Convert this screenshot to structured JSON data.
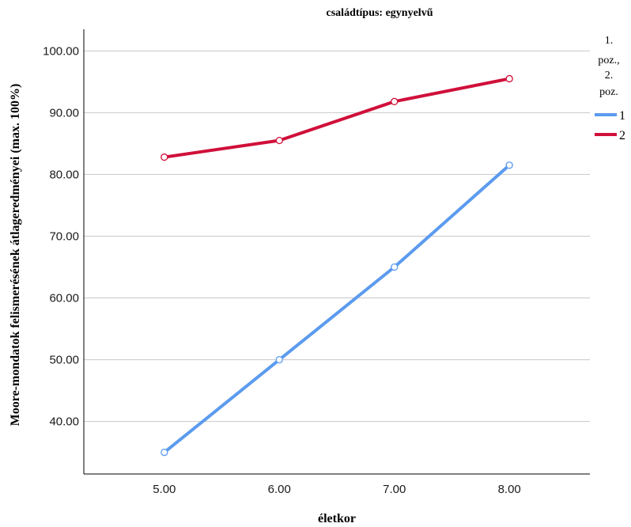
{
  "chart_data": {
    "type": "line",
    "title": "családtípus: egynyelvű",
    "xlabel": "életkor",
    "ylabel": "Moore-mondatok felismerésének átlageredményei (max. 100%)",
    "x": [
      5.0,
      6.0,
      7.0,
      8.0
    ],
    "x_tick_labels": [
      "5.00",
      "6.00",
      "7.00",
      "8.00"
    ],
    "xlim": [
      4.3,
      8.7
    ],
    "y_ticks": [
      40,
      50,
      60,
      70,
      80,
      90,
      100
    ],
    "y_tick_labels": [
      "40.00",
      "50.00",
      "60.00",
      "70.00",
      "80.00",
      "90.00",
      "100.00"
    ],
    "ylim": [
      31.5,
      103.5
    ],
    "grid": "horizontal",
    "legend": {
      "title_lines": [
        "1.",
        "poz.,",
        "2.",
        "poz."
      ],
      "placement": "right"
    },
    "series": [
      {
        "name": "1",
        "color": "#5b9bef",
        "values": [
          35.0,
          50.0,
          65.0,
          81.5
        ]
      },
      {
        "name": "2",
        "color": "#d0103a",
        "values": [
          82.8,
          85.5,
          91.8,
          95.5
        ]
      }
    ]
  }
}
